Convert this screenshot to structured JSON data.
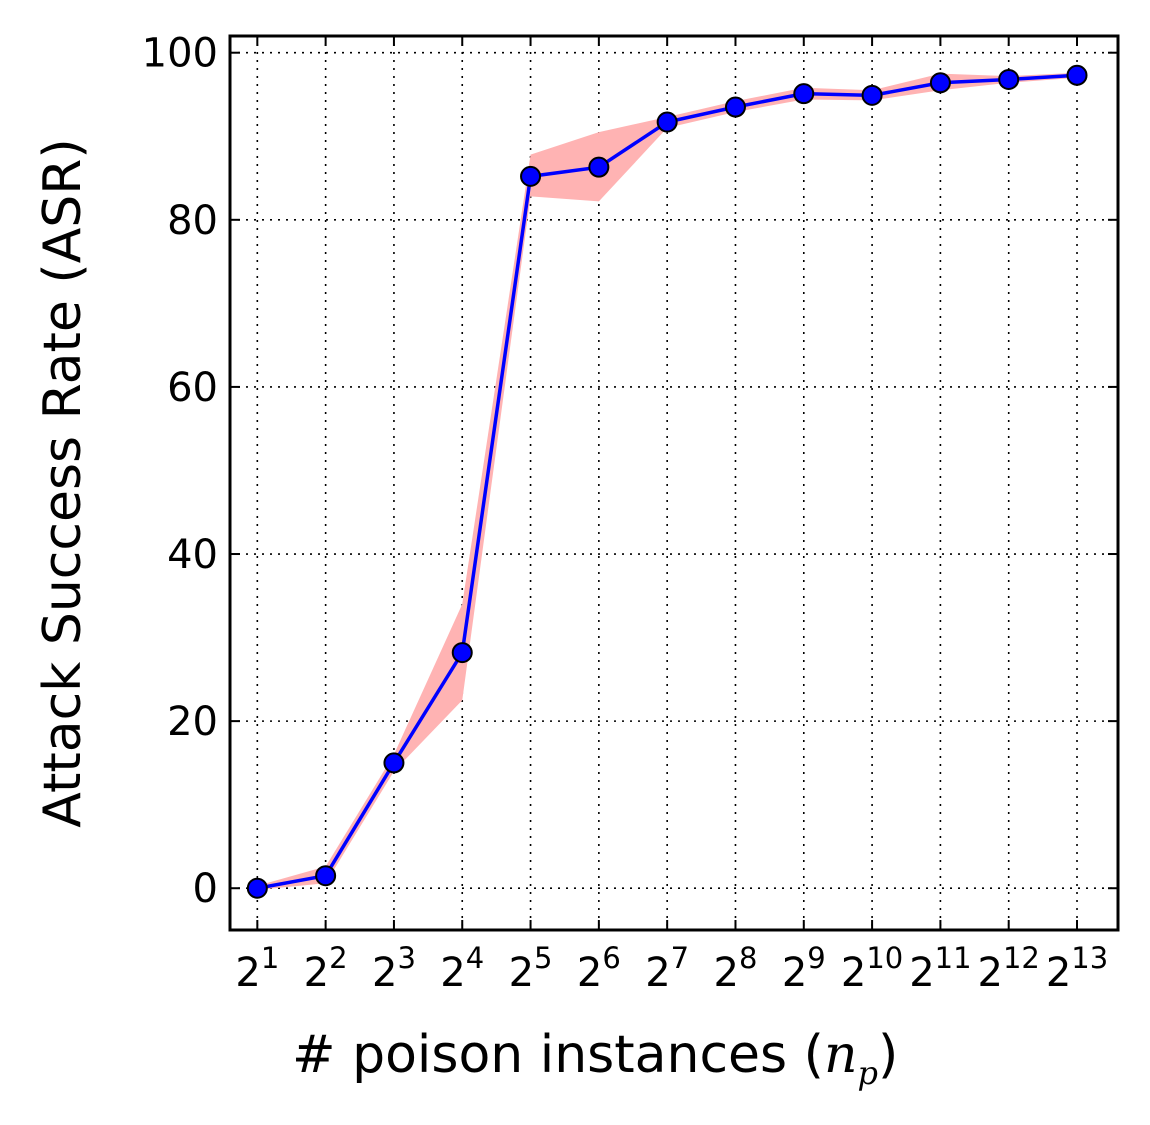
{
  "chart_data": {
    "type": "line",
    "title": "",
    "xlabel": "# poison instances (",
    "xlabel_symbol": "n",
    "xlabel_subscript": "p",
    "xlabel_close": ")",
    "ylabel": "Attack Success Rate (ASR)",
    "x_base": "2",
    "x": [
      1,
      2,
      3,
      4,
      5,
      6,
      7,
      8,
      9,
      10,
      11,
      12,
      13
    ],
    "xscale": "log2",
    "ylim": [
      -5,
      102
    ],
    "yticks": [
      0,
      20,
      40,
      60,
      80,
      100
    ],
    "grid": true,
    "legend": "none",
    "series": [
      {
        "values": [
          0.0,
          1.5,
          15.0,
          28.2,
          85.2,
          86.3,
          91.7,
          93.5,
          95.1,
          94.9,
          96.4,
          96.8,
          97.3
        ],
        "band_upper": [
          0.3,
          2.6,
          16.0,
          34.0,
          87.8,
          90.5,
          92.3,
          94.2,
          95.8,
          95.5,
          97.5,
          97.2,
          97.6
        ],
        "band_lower": [
          -0.2,
          0.6,
          14.0,
          22.5,
          82.8,
          82.2,
          91.0,
          92.9,
          94.4,
          94.3,
          95.5,
          96.4,
          97.0
        ],
        "line_color": "#0000ff",
        "marker_color": "#0000ff",
        "band_color": "#ffb3b3"
      }
    ]
  }
}
